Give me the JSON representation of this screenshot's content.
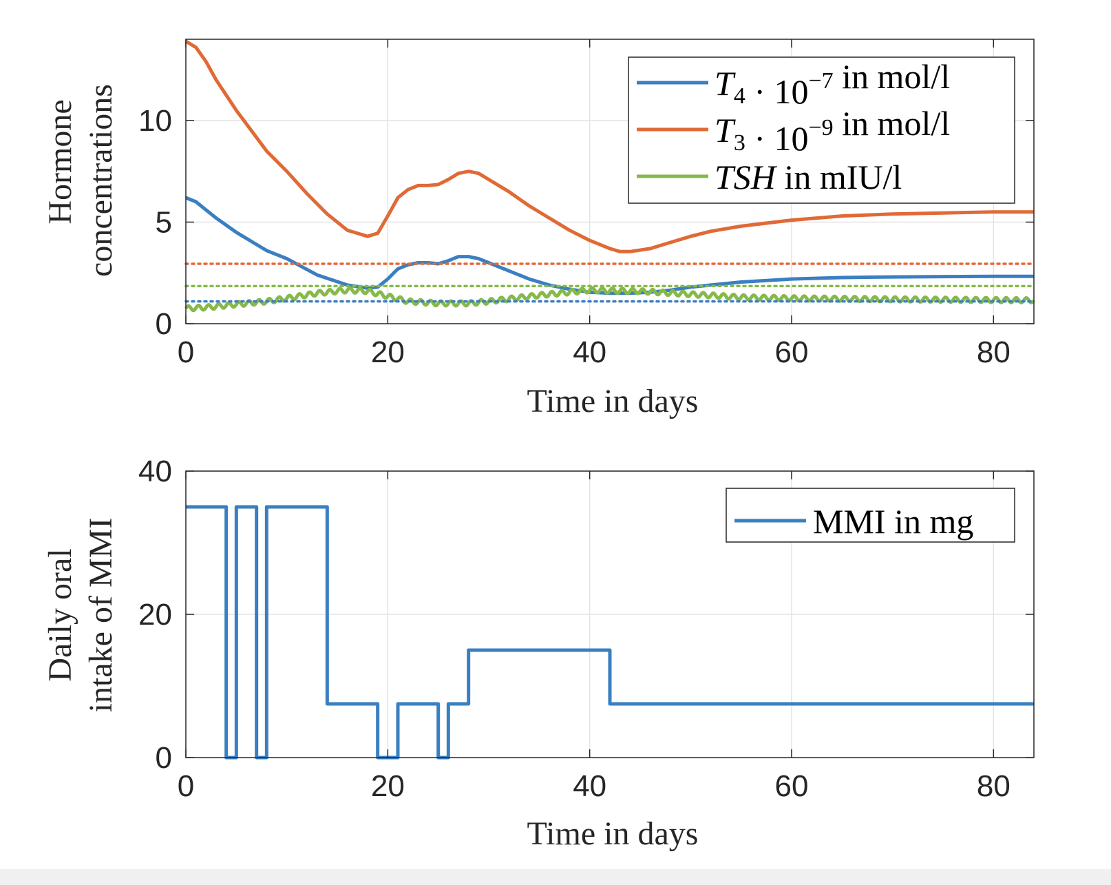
{
  "chart_data": [
    {
      "type": "line",
      "xlabel": "Time in days",
      "ylabel_lines": [
        "Hormone",
        "concentrations"
      ],
      "xlim": [
        0,
        84
      ],
      "ylim": [
        0,
        14
      ],
      "xticks": [
        "0",
        "20",
        "40",
        "60",
        "80"
      ],
      "yticks": [
        "0",
        "5",
        "10"
      ],
      "xtick_values": [
        0,
        20,
        40,
        60,
        80
      ],
      "ytick_values": [
        0,
        5,
        10
      ],
      "grid": true,
      "legend_position": "top-right",
      "series": [
        {
          "name": "T4 · 10^-7 in mol/l",
          "legend_base": "T",
          "legend_sub": "4",
          "legend_mid": " · 10",
          "legend_sup": "−7",
          "legend_tail": " in mol/l",
          "color": "#3a7fc1",
          "style": "solid",
          "x": [
            0,
            1,
            2,
            3,
            5,
            8,
            10,
            13,
            16,
            18,
            19,
            20,
            21,
            22,
            23,
            24,
            25,
            26,
            27,
            28,
            29,
            30,
            32,
            34,
            36,
            38,
            40,
            42,
            44,
            46,
            48,
            50,
            52,
            55,
            60,
            65,
            70,
            75,
            80,
            84
          ],
          "y": [
            6.2,
            6.0,
            5.6,
            5.2,
            4.5,
            3.6,
            3.2,
            2.4,
            1.9,
            1.75,
            1.8,
            2.2,
            2.7,
            2.9,
            3.0,
            3.0,
            2.95,
            3.1,
            3.3,
            3.3,
            3.2,
            3.0,
            2.6,
            2.2,
            1.9,
            1.7,
            1.55,
            1.5,
            1.5,
            1.55,
            1.65,
            1.8,
            1.9,
            2.05,
            2.2,
            2.27,
            2.3,
            2.32,
            2.33,
            2.33
          ]
        },
        {
          "name": "T3 · 10^-9 in mol/l",
          "legend_base": "T",
          "legend_sub": "3",
          "legend_mid": " · 10",
          "legend_sup": "−9",
          "legend_tail": " in mol/l",
          "color": "#e06a36",
          "style": "solid",
          "x": [
            0,
            1,
            2,
            3,
            5,
            8,
            10,
            12,
            14,
            16,
            18,
            19,
            20,
            21,
            22,
            23,
            24,
            25,
            26,
            27,
            28,
            29,
            30,
            32,
            34,
            36,
            38,
            40,
            42,
            43,
            44,
            46,
            48,
            50,
            52,
            55,
            60,
            65,
            70,
            75,
            80,
            84
          ],
          "y": [
            13.9,
            13.6,
            12.9,
            12.0,
            10.5,
            8.5,
            7.5,
            6.4,
            5.4,
            4.6,
            4.3,
            4.45,
            5.3,
            6.2,
            6.6,
            6.8,
            6.8,
            6.85,
            7.1,
            7.4,
            7.5,
            7.4,
            7.1,
            6.5,
            5.8,
            5.2,
            4.6,
            4.1,
            3.7,
            3.55,
            3.55,
            3.7,
            4.0,
            4.3,
            4.55,
            4.8,
            5.1,
            5.3,
            5.4,
            5.45,
            5.5,
            5.5
          ]
        },
        {
          "name": "TSH in mIU/l",
          "legend_base": "TSH",
          "legend_sub": "",
          "legend_mid": "",
          "legend_sup": "",
          "legend_tail": " in mIU/l",
          "color": "#86b949",
          "style": "solid",
          "x": [
            0,
            2,
            5,
            8,
            10,
            13,
            16,
            18,
            20,
            22,
            25,
            28,
            30,
            35,
            40,
            45,
            50,
            55,
            60,
            70,
            84
          ],
          "y": [
            0.75,
            0.8,
            0.95,
            1.1,
            1.25,
            1.5,
            1.65,
            1.6,
            1.35,
            1.1,
            1.0,
            1.0,
            1.1,
            1.4,
            1.65,
            1.6,
            1.45,
            1.3,
            1.25,
            1.2,
            1.15
          ],
          "oscillation_amplitude": 0.12,
          "oscillation_period_days": 1
        },
        {
          "name": "T3 reference",
          "color": "#e06a36",
          "style": "dotted",
          "x": [
            0,
            84
          ],
          "y": [
            2.95,
            2.95
          ]
        },
        {
          "name": "TSH reference",
          "color": "#86b949",
          "style": "dotted",
          "x": [
            0,
            84
          ],
          "y": [
            1.85,
            1.85
          ]
        },
        {
          "name": "T4 reference",
          "color": "#3a7fc1",
          "style": "dotted",
          "x": [
            0,
            84
          ],
          "y": [
            1.1,
            1.1
          ]
        }
      ]
    },
    {
      "type": "line",
      "xlabel": "Time in days",
      "ylabel_lines": [
        "Daily oral",
        "intake of MMI"
      ],
      "xlim": [
        0,
        84
      ],
      "ylim": [
        0,
        40
      ],
      "xticks": [
        "0",
        "20",
        "40",
        "60",
        "80"
      ],
      "yticks": [
        "0",
        "20",
        "40"
      ],
      "xtick_values": [
        0,
        20,
        40,
        60,
        80
      ],
      "ytick_values": [
        0,
        20,
        40
      ],
      "grid": true,
      "legend_position": "top-right",
      "series": [
        {
          "name": "MMI in mg",
          "legend_base": "",
          "legend_sub": "",
          "legend_mid": "",
          "legend_sup": "",
          "legend_tail": "MMI in mg",
          "color": "#3a7fc1",
          "style": "step",
          "x": [
            0,
            4,
            5,
            7,
            8,
            14,
            19,
            21,
            25,
            26,
            28,
            42,
            84
          ],
          "y": [
            35,
            0,
            35,
            0,
            35,
            7.5,
            0,
            7.5,
            0,
            7.5,
            15,
            7.5,
            7.5
          ]
        }
      ]
    }
  ]
}
